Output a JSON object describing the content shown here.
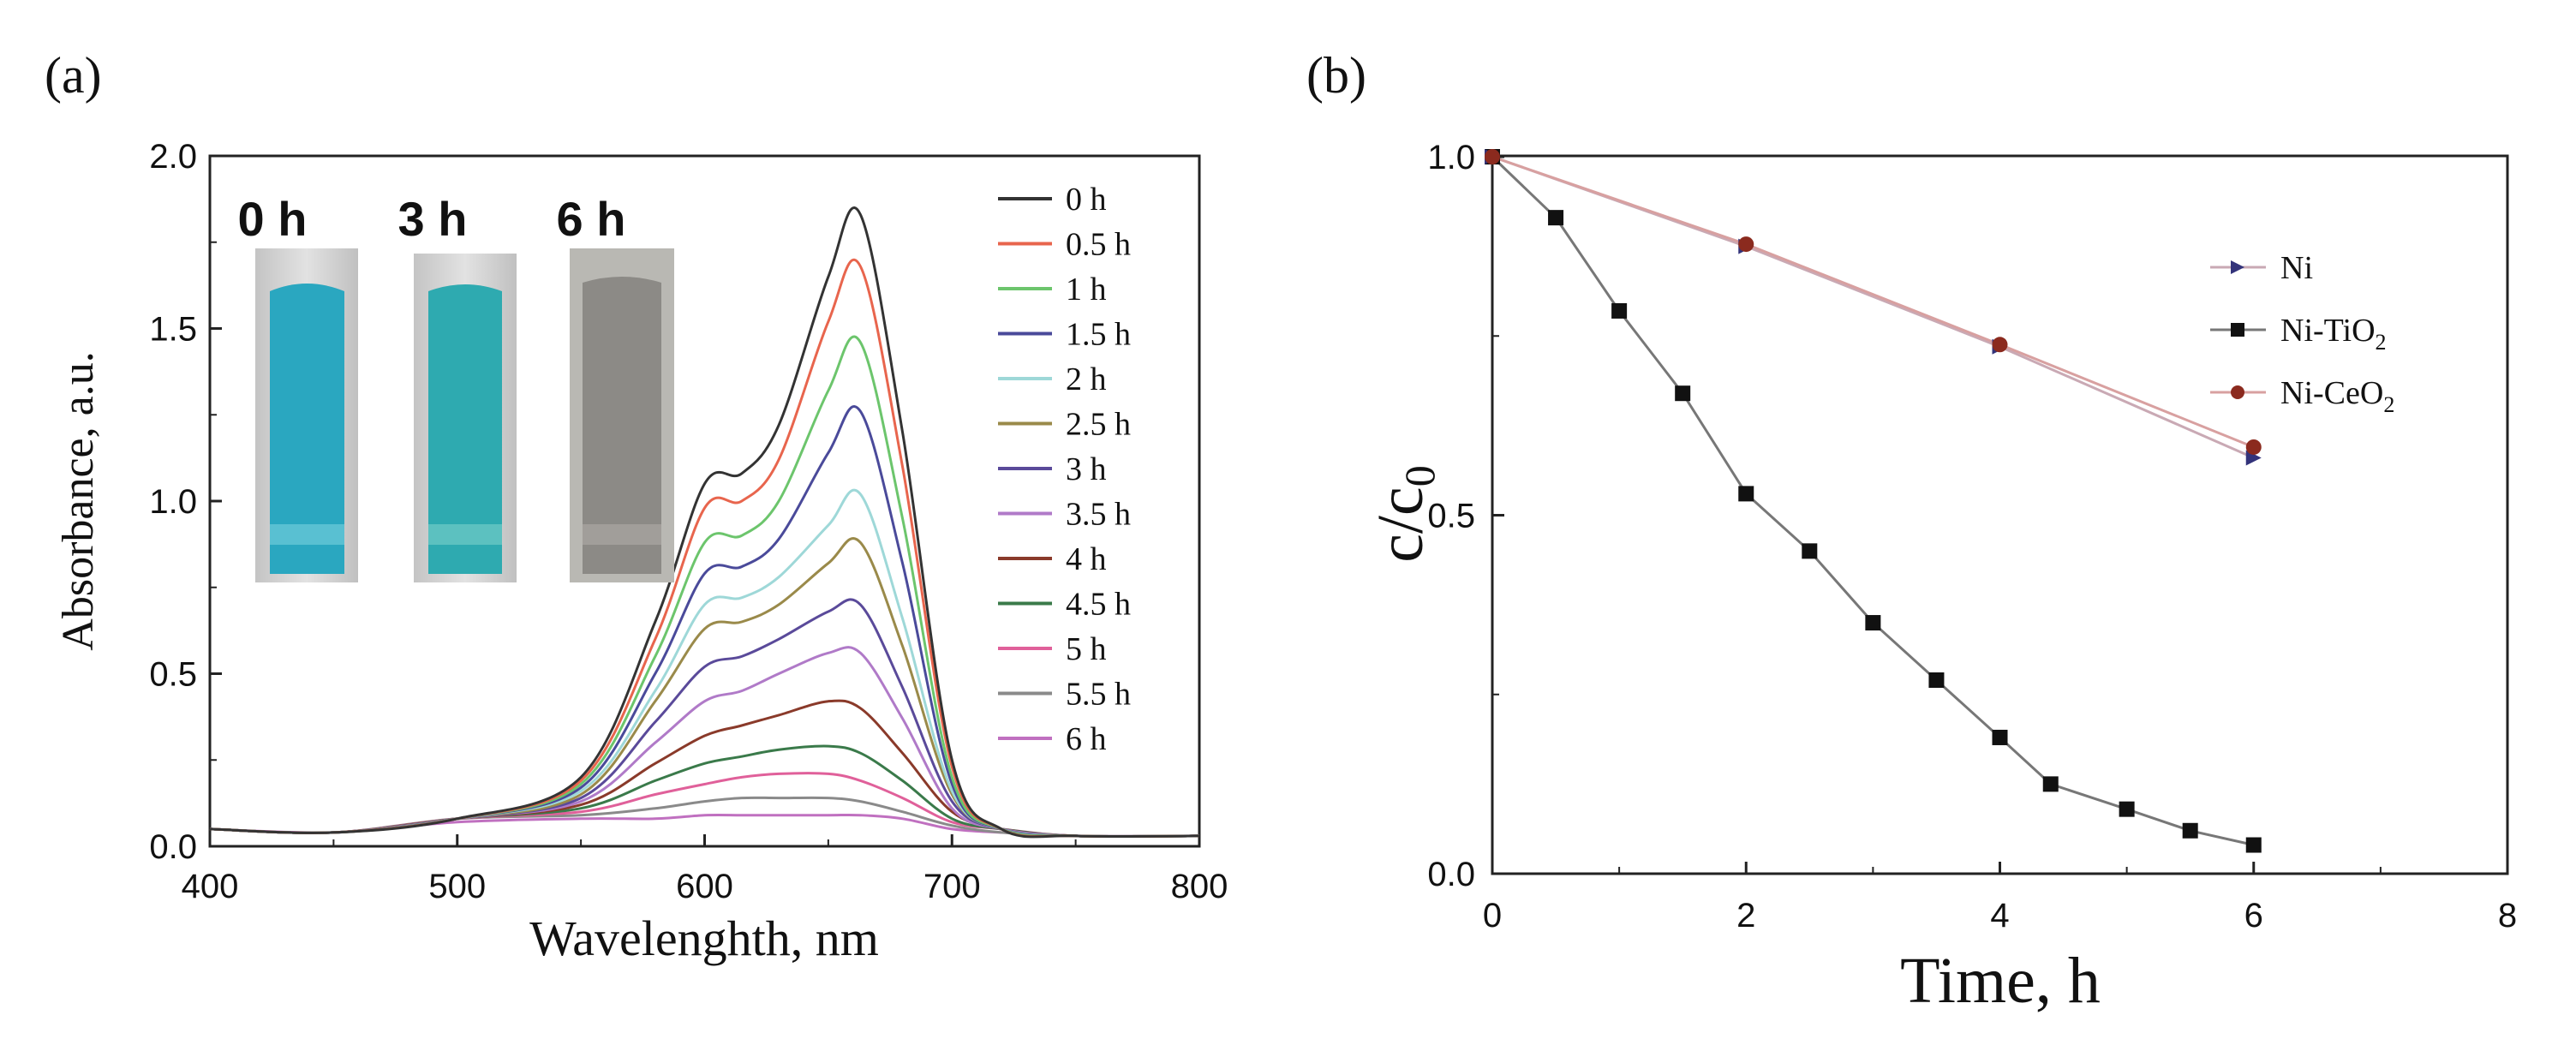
{
  "chart_data": [
    {
      "panel_label": "(a)",
      "type": "line",
      "xlabel": "Wavelenghth, nm",
      "ylabel": "Absorbance, a.u.",
      "xlim": [
        400,
        800
      ],
      "ylim": [
        0,
        2.0
      ],
      "xticks": [
        400,
        500,
        600,
        700,
        800
      ],
      "yticks": [
        0.0,
        0.5,
        1.0,
        1.5,
        2.0
      ],
      "x": [
        400,
        450,
        500,
        550,
        580,
        600,
        615,
        630,
        650,
        663,
        680,
        700,
        720,
        750,
        800
      ],
      "series": [
        {
          "name": "0 h",
          "color": "#333333",
          "values": [
            0.05,
            0.04,
            0.08,
            0.2,
            0.65,
            1.05,
            1.08,
            1.22,
            1.65,
            1.83,
            1.2,
            0.25,
            0.05,
            0.03,
            0.03
          ]
        },
        {
          "name": "0.5 h",
          "color": "#e8654d",
          "values": [
            0.05,
            0.04,
            0.08,
            0.19,
            0.6,
            0.98,
            1.0,
            1.12,
            1.52,
            1.68,
            1.1,
            0.23,
            0.05,
            0.03,
            0.03
          ]
        },
        {
          "name": "1 h",
          "color": "#6cc56c",
          "values": [
            0.05,
            0.04,
            0.08,
            0.18,
            0.55,
            0.88,
            0.9,
            1.0,
            1.32,
            1.46,
            0.95,
            0.2,
            0.05,
            0.03,
            0.03
          ]
        },
        {
          "name": "1.5 h",
          "color": "#4a4a9a",
          "values": [
            0.05,
            0.04,
            0.08,
            0.17,
            0.5,
            0.79,
            0.81,
            0.89,
            1.14,
            1.26,
            0.82,
            0.18,
            0.05,
            0.03,
            0.03
          ]
        },
        {
          "name": "2 h",
          "color": "#9ed8d8",
          "values": [
            0.05,
            0.04,
            0.08,
            0.16,
            0.45,
            0.7,
            0.72,
            0.78,
            0.93,
            1.02,
            0.66,
            0.16,
            0.05,
            0.03,
            0.03
          ]
        },
        {
          "name": "2.5 h",
          "color": "#9a8a4a",
          "values": [
            0.05,
            0.04,
            0.08,
            0.15,
            0.42,
            0.63,
            0.65,
            0.7,
            0.82,
            0.88,
            0.58,
            0.15,
            0.05,
            0.03,
            0.03
          ]
        },
        {
          "name": "3 h",
          "color": "#5a4a9a",
          "values": [
            0.05,
            0.04,
            0.08,
            0.14,
            0.36,
            0.52,
            0.55,
            0.6,
            0.68,
            0.7,
            0.46,
            0.13,
            0.05,
            0.03,
            0.03
          ]
        },
        {
          "name": "3.5 h",
          "color": "#b07ac8",
          "values": [
            0.05,
            0.04,
            0.08,
            0.13,
            0.3,
            0.42,
            0.45,
            0.5,
            0.56,
            0.56,
            0.37,
            0.11,
            0.05,
            0.03,
            0.03
          ]
        },
        {
          "name": "4 h",
          "color": "#8a3a2a",
          "values": [
            0.05,
            0.04,
            0.08,
            0.12,
            0.24,
            0.32,
            0.35,
            0.38,
            0.42,
            0.4,
            0.27,
            0.1,
            0.05,
            0.03,
            0.03
          ]
        },
        {
          "name": "4.5 h",
          "color": "#3a7a4a",
          "values": [
            0.05,
            0.04,
            0.08,
            0.11,
            0.19,
            0.24,
            0.26,
            0.28,
            0.29,
            0.27,
            0.19,
            0.08,
            0.05,
            0.03,
            0.03
          ]
        },
        {
          "name": "5 h",
          "color": "#e0609a",
          "values": [
            0.05,
            0.04,
            0.08,
            0.1,
            0.15,
            0.18,
            0.2,
            0.21,
            0.21,
            0.19,
            0.14,
            0.07,
            0.05,
            0.03,
            0.03
          ]
        },
        {
          "name": "5.5 h",
          "color": "#8a8a8a",
          "values": [
            0.05,
            0.04,
            0.08,
            0.09,
            0.11,
            0.13,
            0.14,
            0.14,
            0.14,
            0.13,
            0.1,
            0.06,
            0.04,
            0.03,
            0.03
          ]
        },
        {
          "name": "6 h",
          "color": "#c070c0",
          "values": [
            0.05,
            0.04,
            0.07,
            0.08,
            0.08,
            0.09,
            0.09,
            0.09,
            0.09,
            0.09,
            0.08,
            0.05,
            0.04,
            0.03,
            0.03
          ]
        }
      ],
      "inset": {
        "labels": [
          "0 h",
          "3 h",
          "6 h"
        ],
        "colors": [
          "#2aa7c0",
          "#2eaab0",
          "#8c8a86"
        ]
      }
    },
    {
      "panel_label": "(b)",
      "type": "line",
      "xlabel": "Time, h",
      "ylabel": "c/c",
      "ylabel_sub": "0",
      "xlim": [
        0,
        8
      ],
      "ylim": [
        0,
        1.0
      ],
      "xticks": [
        0,
        2,
        4,
        6,
        8
      ],
      "yticks": [
        0.0,
        0.5,
        1.0
      ],
      "series": [
        {
          "name": "Ni",
          "legend_main": "Ni",
          "legend_sub": "",
          "color": "#33337a",
          "line_color": "#c9a9b4",
          "marker": "triangle-right",
          "x": [
            0,
            2,
            4,
            6
          ],
          "values": [
            1.0,
            0.875,
            0.735,
            0.58
          ]
        },
        {
          "name": "Ni-TiO2",
          "legend_main": "Ni-TiO",
          "legend_sub": "2",
          "color": "#111111",
          "line_color": "#777777",
          "marker": "square",
          "x": [
            0,
            0.5,
            1,
            1.5,
            2,
            2.5,
            3,
            3.5,
            4,
            4.4,
            5,
            5.5,
            6
          ],
          "values": [
            1.0,
            0.915,
            0.785,
            0.67,
            0.53,
            0.45,
            0.35,
            0.27,
            0.19,
            0.125,
            0.09,
            0.06,
            0.04
          ]
        },
        {
          "name": "Ni-CeO2",
          "legend_main": "Ni-CeO",
          "legend_sub": "2",
          "color": "#8b2a1e",
          "line_color": "#d8a0a0",
          "marker": "circle",
          "x": [
            0,
            2,
            4,
            6
          ],
          "values": [
            1.0,
            0.878,
            0.738,
            0.595
          ]
        }
      ]
    }
  ]
}
